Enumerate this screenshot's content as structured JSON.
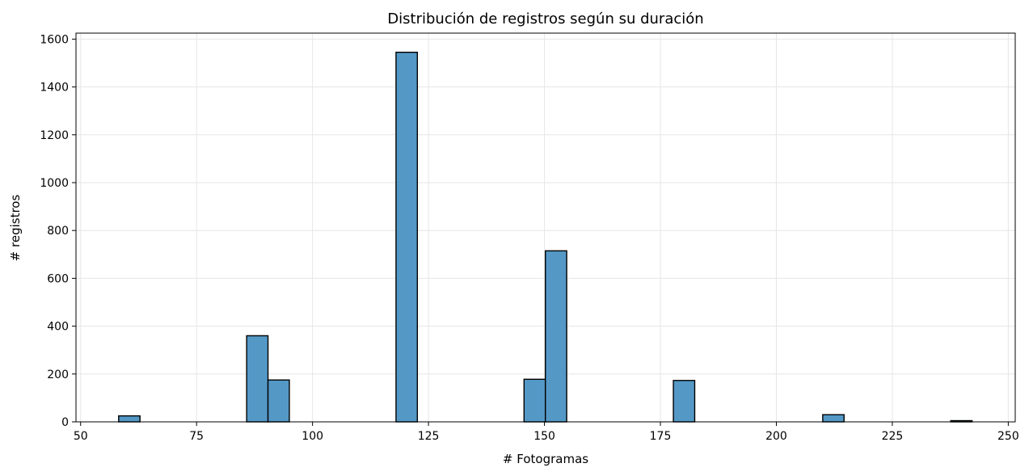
{
  "chart_data": {
    "type": "bar",
    "title": "Distribución de registros según su duración",
    "xlabel": "# Fotogramas",
    "ylabel": "# registros",
    "xlim": [
      49,
      251.5
    ],
    "ylim": [
      0,
      1625
    ],
    "xticks": [
      50,
      75,
      100,
      125,
      150,
      175,
      200,
      225,
      250
    ],
    "yticks": [
      0,
      200,
      400,
      600,
      800,
      1000,
      1200,
      1400,
      1600
    ],
    "grid": true,
    "bar_color": "#5498c6",
    "bin_start": 58.2,
    "bin_width": 4.6,
    "bin_counts": [
      25,
      0,
      0,
      0,
      0,
      0,
      360,
      175,
      0,
      0,
      0,
      0,
      0,
      1545,
      0,
      0,
      0,
      0,
      0,
      178,
      715,
      0,
      0,
      0,
      0,
      0,
      173,
      0,
      0,
      0,
      0,
      0,
      0,
      30,
      0,
      0,
      0,
      0,
      0,
      5
    ]
  }
}
